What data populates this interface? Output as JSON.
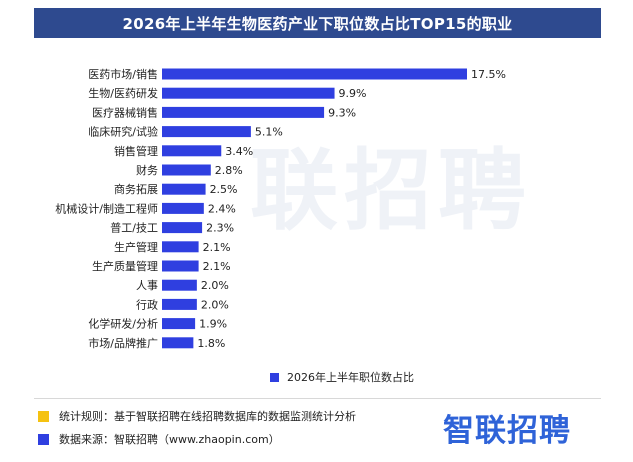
{
  "title": "2026年上半年生物医药产业下职位数占比TOP15的职业",
  "watermark": "联招聘",
  "colors": {
    "title_bg": "#2e4a8f",
    "bar": "#2f3fe0",
    "note_yellow": "#f5c211",
    "note_blue": "#2f3fe0",
    "brand": "#2f63d8"
  },
  "chart_data": {
    "type": "bar",
    "orientation": "horizontal",
    "categories": [
      "医药市场/销售",
      "生物/医药研发",
      "医疗器械销售",
      "临床研究/试验",
      "销售管理",
      "财务",
      "商务拓展",
      "机械设计/制造工程师",
      "普工/技工",
      "生产管理",
      "生产质量管理",
      "人事",
      "行政",
      "化学研发/分析",
      "市场/品牌推广"
    ],
    "series": [
      {
        "name": "2026年上半年职位数占比",
        "values": [
          17.5,
          9.9,
          9.3,
          5.1,
          3.4,
          2.8,
          2.5,
          2.4,
          2.3,
          2.1,
          2.1,
          2.0,
          2.0,
          1.9,
          1.8
        ]
      }
    ],
    "value_labels": [
      "17.5%",
      "9.9%",
      "9.3%",
      "5.1%",
      "3.4%",
      "2.8%",
      "2.5%",
      "2.4%",
      "2.3%",
      "2.1%",
      "2.1%",
      "2.0%",
      "2.0%",
      "1.9%",
      "1.8%"
    ],
    "xlim": [
      0,
      17.5
    ],
    "grid": false,
    "legend_position": "bottom"
  },
  "notes": [
    {
      "icon": "yellow-square-icon",
      "text": "统计规则：基于智联招聘在线招聘数据库的数据监测统计分析"
    },
    {
      "icon": "blue-square-icon",
      "text": "数据来源：智联招聘（www.zhaopin.com）"
    }
  ],
  "brand": "智联招聘"
}
